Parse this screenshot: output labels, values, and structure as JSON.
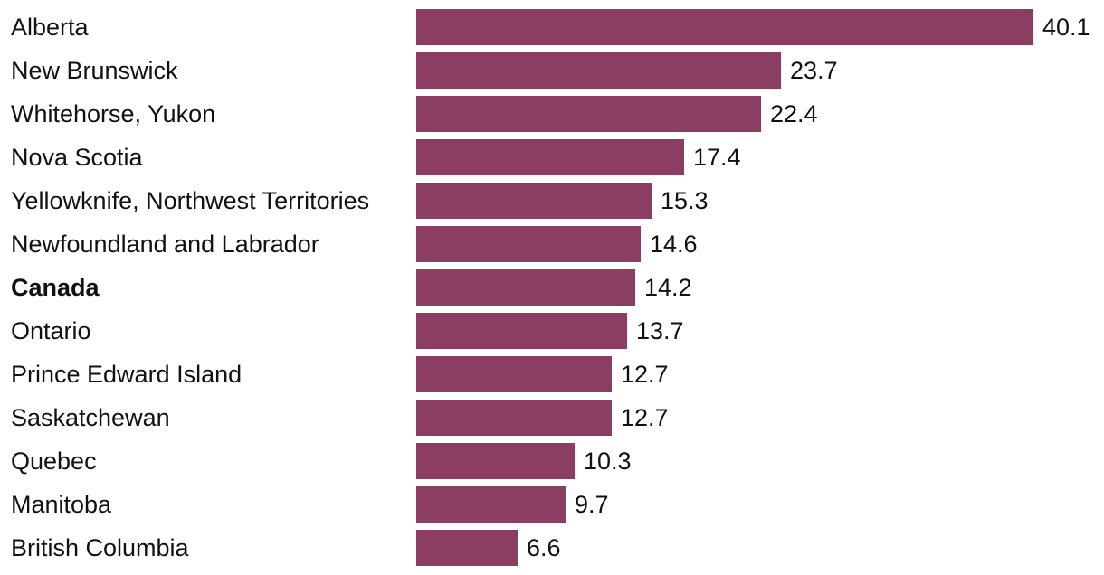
{
  "chart_data": {
    "type": "bar",
    "orientation": "horizontal",
    "categories": [
      "Alberta",
      "New Brunswick",
      "Whitehorse, Yukon",
      "Nova Scotia",
      "Yellowknife, Northwest Territories",
      "Newfoundland and Labrador",
      "Canada",
      "Ontario",
      "Prince Edward Island",
      "Saskatchewan",
      "Quebec",
      "Manitoba",
      "British Columbia"
    ],
    "values": [
      40.1,
      23.7,
      22.4,
      17.4,
      15.3,
      14.6,
      14.2,
      13.7,
      12.7,
      12.7,
      10.3,
      9.7,
      6.6
    ],
    "value_labels": [
      "40.1",
      "23.7",
      "22.4",
      "17.4",
      "15.3",
      "14.6",
      "14.2",
      "13.7",
      "12.7",
      "12.7",
      "10.3",
      "9.7",
      "6.6"
    ],
    "highlighted_category": "Canada",
    "bar_color": "#8b3d62",
    "xlim": [
      0,
      40.1
    ],
    "grid": false,
    "title": "",
    "xlabel": "",
    "ylabel": ""
  }
}
